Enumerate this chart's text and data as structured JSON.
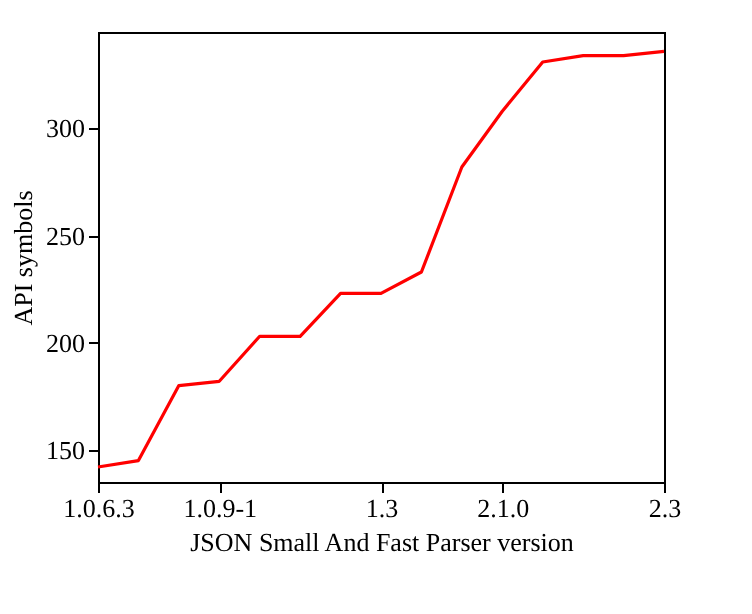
{
  "chart_data": {
    "type": "line",
    "xlabel": "JSON Small And Fast Parser version",
    "ylabel": "API symbols",
    "categories": [
      "1.0.6.3",
      null,
      null,
      "1.0.9-1",
      null,
      null,
      null,
      "1.3",
      null,
      null,
      "2.1.0",
      null,
      null,
      null,
      "2.3"
    ],
    "series": [
      {
        "color": "#ff0000",
        "values": [
          142,
          145,
          180,
          182,
          203,
          203,
          223,
          223,
          233,
          282,
          308,
          331,
          334,
          334,
          336
        ]
      }
    ],
    "ylim": [
      135,
      345
    ],
    "yticks": [
      150,
      200,
      250,
      300
    ],
    "grid": false,
    "legend": false,
    "marker": "none",
    "line_style": "solid"
  }
}
